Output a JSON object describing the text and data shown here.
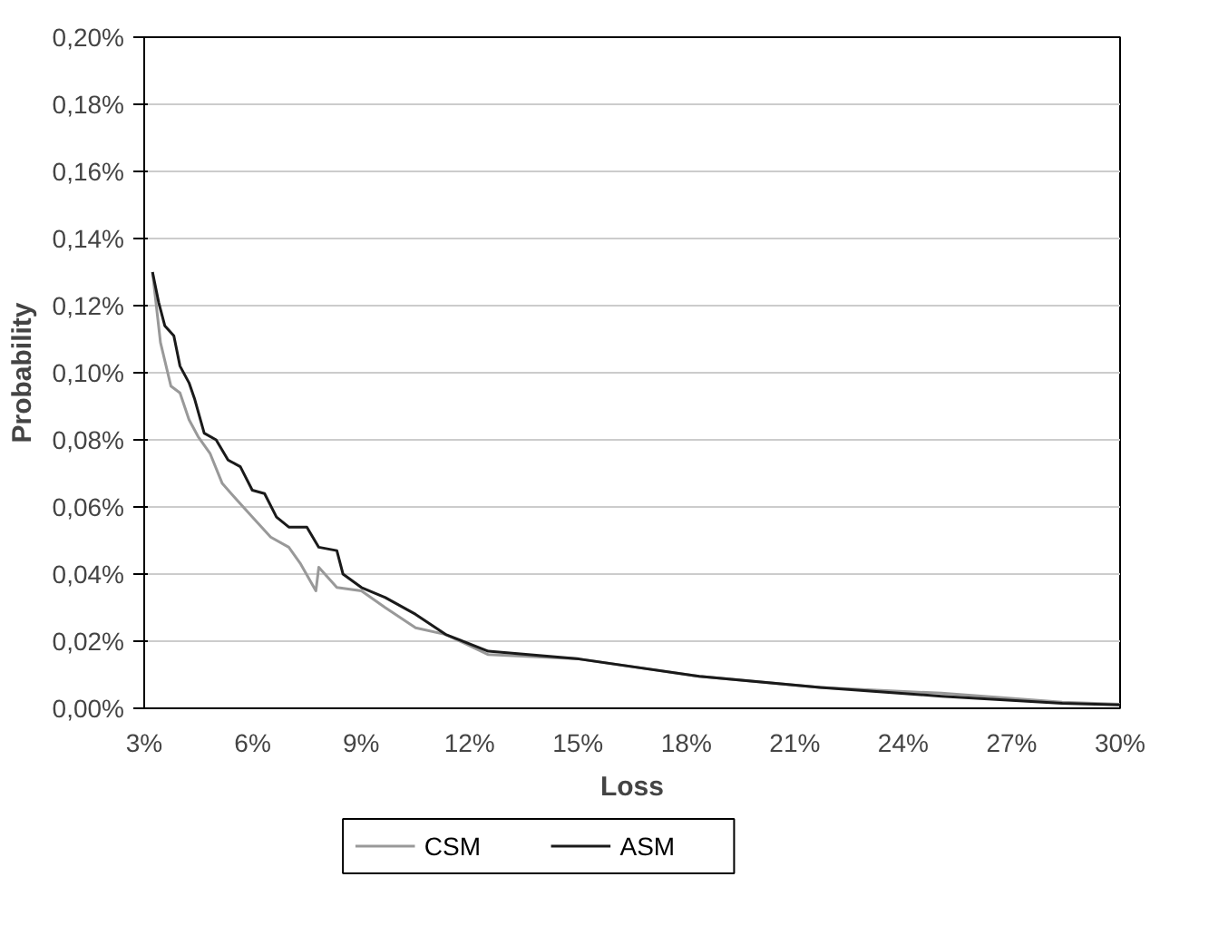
{
  "chart_data": {
    "type": "line",
    "xlabel": "Loss",
    "ylabel": "Probability",
    "xlim": [
      3,
      30
    ],
    "xticks": [
      {
        "value": 3,
        "label": "3%"
      },
      {
        "value": 6,
        "label": "6%"
      },
      {
        "value": 9,
        "label": "9%"
      },
      {
        "value": 12,
        "label": "12%"
      },
      {
        "value": 15,
        "label": "15%"
      },
      {
        "value": 18,
        "label": "18%"
      },
      {
        "value": 21,
        "label": "21%"
      },
      {
        "value": 24,
        "label": "24%"
      },
      {
        "value": 27,
        "label": "27%"
      },
      {
        "value": 30,
        "label": "30%"
      }
    ],
    "ylim": [
      0,
      0.2
    ],
    "yticks": [
      {
        "value": 0,
        "label": "0,00%"
      },
      {
        "value": 0.02,
        "label": "0,02%"
      },
      {
        "value": 0.04,
        "label": "0,04%"
      },
      {
        "value": 0.06,
        "label": "0,06%"
      },
      {
        "value": 0.08,
        "label": "0,08%"
      },
      {
        "value": 0.1,
        "label": "0,10%"
      },
      {
        "value": 0.12,
        "label": "0,12%"
      },
      {
        "value": 0.14,
        "label": "0,14%"
      },
      {
        "value": 0.16,
        "label": "0,16%"
      },
      {
        "value": 0.18,
        "label": "0,18%"
      },
      {
        "value": 0.2,
        "label": "0,20%"
      }
    ],
    "grid": "y",
    "legend": "bottom",
    "marker": "none",
    "line_style": "solid",
    "series": [
      {
        "name": "CSM",
        "color": "#999999",
        "x": [
          3.23,
          3.45,
          3.74,
          3.99,
          4.24,
          4.49,
          4.82,
          5.16,
          5.57,
          5.99,
          6.5,
          7.0,
          7.33,
          7.75,
          7.83,
          8.33,
          9.01,
          9.67,
          10.51,
          11.34,
          12.52,
          15.03,
          18.36,
          21.7,
          25.06,
          28.4,
          30
        ],
        "values": [
          0.13,
          0.109,
          0.096,
          0.094,
          0.086,
          0.081,
          0.076,
          0.067,
          0.062,
          0.057,
          0.051,
          0.048,
          0.043,
          0.035,
          0.042,
          0.036,
          0.035,
          0.03,
          0.024,
          0.022,
          0.016,
          0.0147,
          0.0095,
          0.0062,
          0.0045,
          0.0018,
          0.0012
        ]
      },
      {
        "name": "ASM",
        "color": "#1a1a1a",
        "x": [
          3.23,
          3.4,
          3.57,
          3.82,
          3.99,
          4.24,
          4.4,
          4.66,
          4.99,
          5.32,
          5.66,
          5.99,
          6.33,
          6.66,
          7.0,
          7.5,
          7.83,
          8.33,
          8.5,
          9.01,
          9.67,
          10.51,
          11.34,
          12.52,
          15.03,
          18.36,
          21.7,
          25.06,
          28.4,
          30
        ],
        "values": [
          0.13,
          0.121,
          0.114,
          0.111,
          0.102,
          0.097,
          0.092,
          0.082,
          0.08,
          0.074,
          0.072,
          0.065,
          0.064,
          0.057,
          0.054,
          0.054,
          0.048,
          0.047,
          0.04,
          0.036,
          0.033,
          0.028,
          0.022,
          0.017,
          0.0147,
          0.0095,
          0.0062,
          0.0036,
          0.0015,
          0.001
        ]
      }
    ]
  }
}
